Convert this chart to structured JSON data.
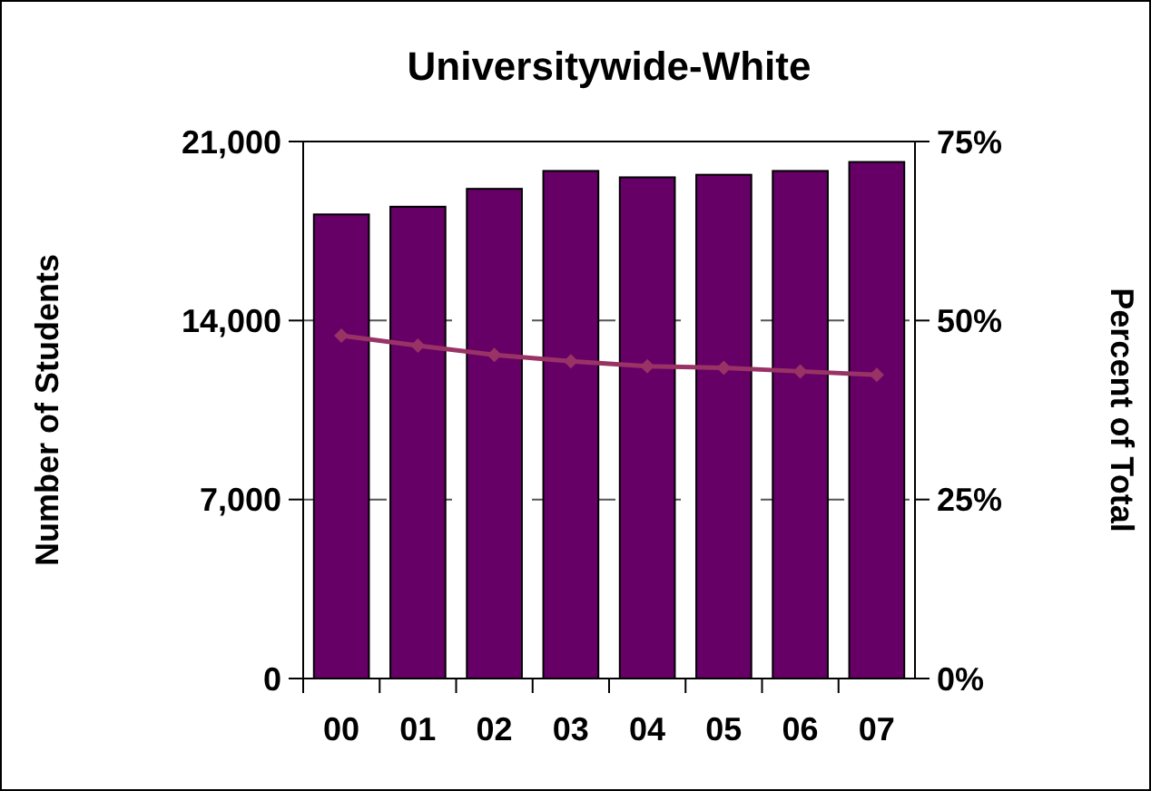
{
  "chart_data": {
    "type": "bar",
    "title": "Universitywide-White",
    "ylabel": "Number of Students",
    "y2label": "Percent of Total",
    "categories": [
      "00",
      "01",
      "02",
      "03",
      "04",
      "05",
      "06",
      "07"
    ],
    "series": [
      {
        "color": "#660066",
        "values": [
          18150,
          18450,
          19150,
          19850,
          19600,
          19700,
          19850,
          20200
        ]
      },
      {
        "type": "line",
        "axis": "y2",
        "color": "#993366",
        "marker": "diamond",
        "values": [
          47.9,
          46.5,
          45.2,
          44.3,
          43.6,
          43.4,
          42.9,
          42.4
        ]
      }
    ],
    "ylim": [
      0,
      21000
    ],
    "yticks": [
      0,
      {
        "value": 7000,
        "label": "7,000"
      },
      {
        "value": 14000,
        "label": "14,000"
      },
      {
        "value": 21000,
        "label": "21,000"
      }
    ],
    "y2lim": [
      0,
      75
    ],
    "y2ticks": [
      {
        "value": 0,
        "label": "0%"
      },
      {
        "value": 25,
        "label": "25%"
      },
      {
        "value": 50,
        "label": "50%"
      },
      {
        "value": 75,
        "label": "75%"
      }
    ],
    "grid": "y"
  }
}
